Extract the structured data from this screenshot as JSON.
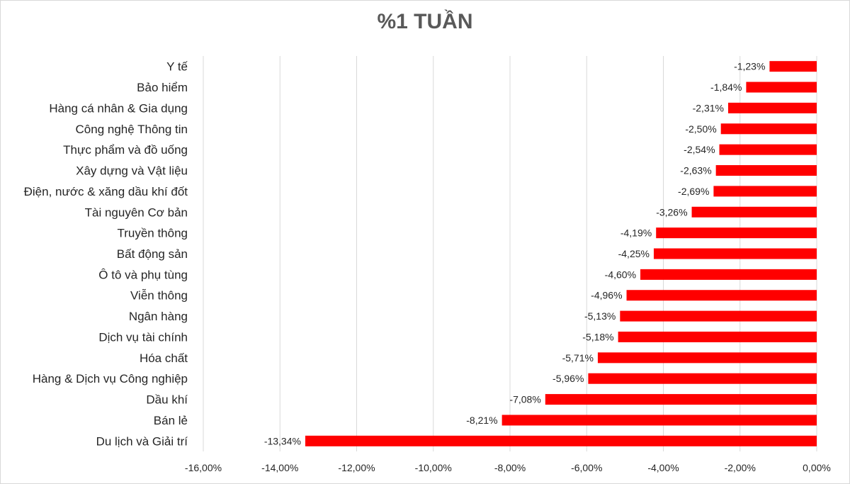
{
  "chart_data": {
    "type": "bar",
    "orientation": "horizontal",
    "title": "%1 TUẦN",
    "categories": [
      "Y tế",
      "Bảo hiểm",
      "Hàng cá nhân & Gia dụng",
      "Công nghệ Thông tin",
      "Thực phẩm và đồ uống",
      "Xây dựng và Vật liệu",
      "Điện, nước & xăng dầu khí đốt",
      "Tài nguyên Cơ bản",
      "Truyền thông",
      "Bất động sản",
      "Ô tô và phụ tùng",
      "Viễn thông",
      "Ngân hàng",
      "Dịch vụ tài chính",
      "Hóa chất",
      "Hàng & Dịch vụ Công nghiệp",
      "Dầu khí",
      "Bán lẻ",
      "Du lịch và Giải trí"
    ],
    "values": [
      -1.23,
      -1.84,
      -2.31,
      -2.5,
      -2.54,
      -2.63,
      -2.69,
      -3.26,
      -4.19,
      -4.25,
      -4.6,
      -4.96,
      -5.13,
      -5.18,
      -5.71,
      -5.96,
      -7.08,
      -8.21,
      -13.34
    ],
    "value_labels": [
      "-1,23%",
      "-1,84%",
      "-2,31%",
      "-2,50%",
      "-2,54%",
      "-2,63%",
      "-2,69%",
      "-3,26%",
      "-4,19%",
      "-4,25%",
      "-4,60%",
      "-4,96%",
      "-5,13%",
      "-5,18%",
      "-5,71%",
      "-5,96%",
      "-7,08%",
      "-8,21%",
      "-13,34%"
    ],
    "x_ticks": [
      -16,
      -14,
      -12,
      -10,
      -8,
      -6,
      -4,
      -2,
      0
    ],
    "x_tick_labels": [
      "-16,00%",
      "-14,00%",
      "-12,00%",
      "-10,00%",
      "-8,00%",
      "-6,00%",
      "-4,00%",
      "-2,00%",
      "0,00%"
    ],
    "xlim": [
      -16,
      0
    ],
    "xlabel": "",
    "ylabel": "",
    "grid": true,
    "legend": "none",
    "bar_color": "#ff0000",
    "grid_color": "#d9d9d9"
  }
}
